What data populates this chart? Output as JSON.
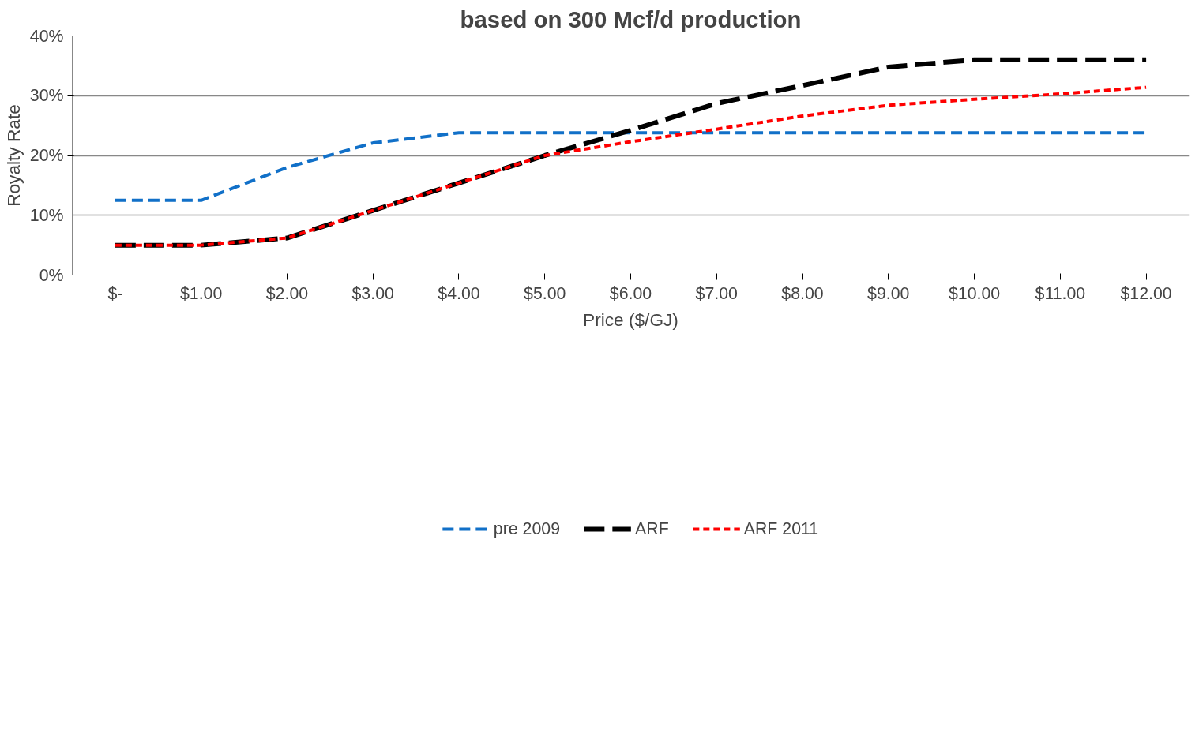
{
  "chart_data": {
    "type": "line",
    "title": "based on 300 Mcf/d production",
    "xlabel": "Price ($/GJ)",
    "ylabel": "Royalty Rate",
    "categories": [
      "$-",
      "$1.00",
      "$2.00",
      "$3.00",
      "$4.00",
      "$5.00",
      "$6.00",
      "$7.00",
      "$8.00",
      "$9.00",
      "$10.00",
      "$11.00",
      "$12.00"
    ],
    "series": [
      {
        "name": "pre 2009",
        "color": "#1170c8",
        "line_style": "dashed",
        "values": [
          12.5,
          12.5,
          18.0,
          22.1,
          23.8,
          23.8,
          23.8,
          23.8,
          23.8,
          23.8,
          23.8,
          23.8,
          23.8
        ]
      },
      {
        "name": "ARF",
        "color": "#000000",
        "line_style": "dashed",
        "values": [
          5.0,
          5.0,
          6.2,
          10.8,
          15.4,
          20.0,
          24.2,
          28.7,
          31.7,
          34.8,
          36.0,
          36.0,
          36.0
        ]
      },
      {
        "name": "ARF 2011",
        "color": "#ff0000",
        "line_style": "dotted",
        "values": [
          5.0,
          5.0,
          6.2,
          10.8,
          15.4,
          20.0,
          22.3,
          24.4,
          26.6,
          28.4,
          29.4,
          30.3,
          31.4
        ]
      }
    ],
    "ylim": [
      0,
      40
    ],
    "yticks": [
      {
        "value": 0,
        "label": "0%"
      },
      {
        "value": 10,
        "label": "10%"
      },
      {
        "value": 20,
        "label": "20%"
      },
      {
        "value": 30,
        "label": "30%"
      },
      {
        "value": 40,
        "label": "40%"
      }
    ],
    "grid": "y",
    "legend": "bottom",
    "marker": "none"
  }
}
